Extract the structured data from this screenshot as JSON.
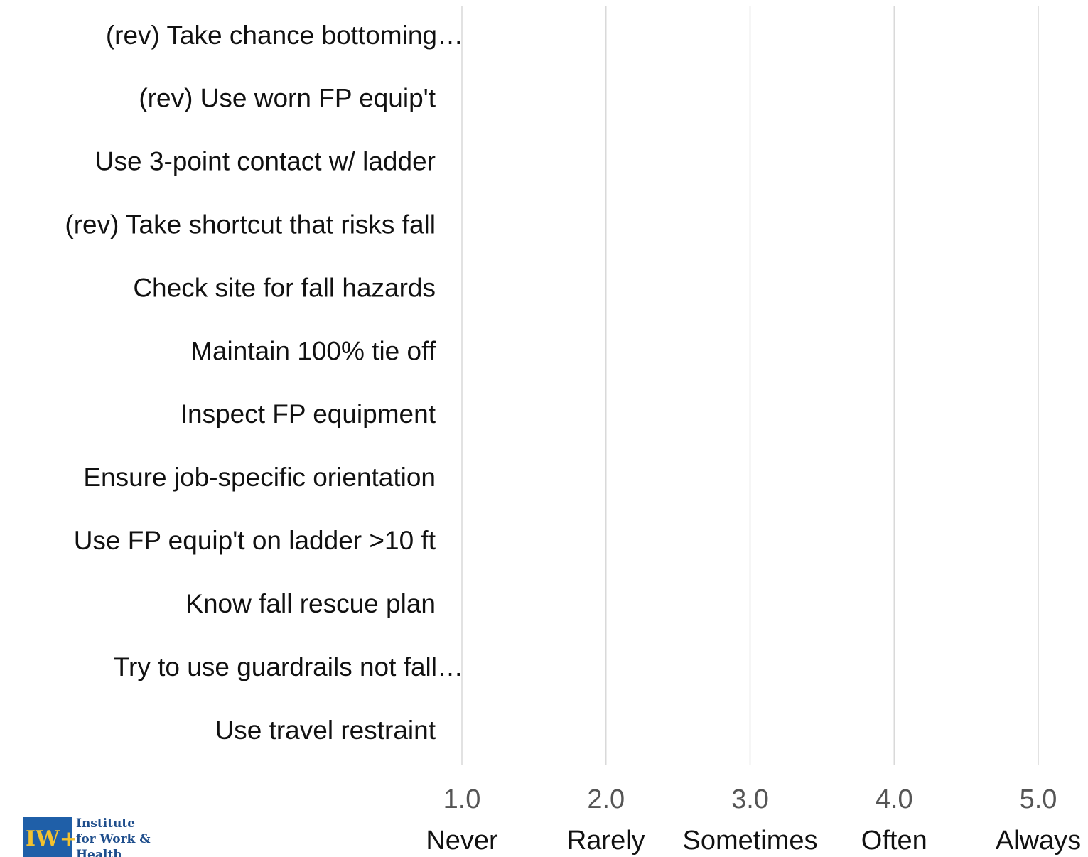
{
  "chart_data": {
    "type": "bar",
    "orientation": "horizontal",
    "categories": [
      "(rev) Take chance bottoming…",
      "(rev) Use worn FP equip't",
      "Use 3-point contact w/ ladder",
      "(rev) Take shortcut that risks fall",
      "Check site for fall hazards",
      "Maintain 100% tie off",
      "Inspect FP equipment",
      "Ensure job-specific orientation",
      "Use FP equip't on ladder >10 ft",
      "Know fall rescue plan",
      "Try to use guardrails not fall…",
      "Use travel restraint"
    ],
    "xlim": [
      1,
      5
    ],
    "xticks": [
      {
        "value": 1,
        "label": "1.0"
      },
      {
        "value": 2,
        "label": "2.0"
      },
      {
        "value": 3,
        "label": "3.0"
      },
      {
        "value": 4,
        "label": "4.0"
      },
      {
        "value": 5,
        "label": "5.0"
      }
    ],
    "xtick_sublabels": [
      "Never",
      "Rarely",
      "Sometimes",
      "Often",
      "Always"
    ],
    "grid": true
  },
  "logo": {
    "lines": [
      "Institute",
      "for Work &",
      "Health"
    ]
  }
}
